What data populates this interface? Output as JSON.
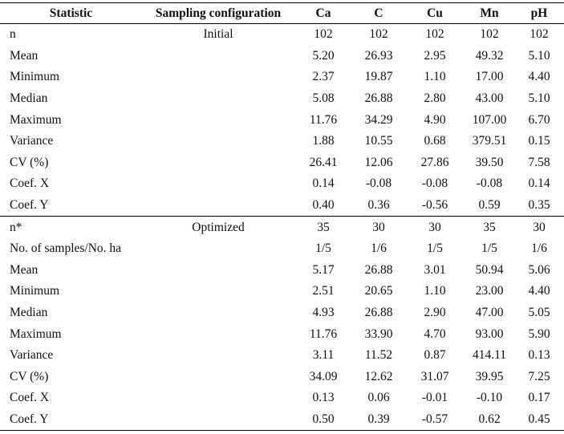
{
  "headers": [
    "Statistic",
    "Sampling configuration",
    "Ca",
    "C",
    "Cu",
    "Mn",
    "pH"
  ],
  "sections": [
    {
      "config": "Initial",
      "rows": [
        {
          "stat": "n",
          "values": [
            "102",
            "102",
            "102",
            "102",
            "102"
          ]
        },
        {
          "stat": "Mean",
          "values": [
            "5.20",
            "26.93",
            "2.95",
            "49.32",
            "5.10"
          ]
        },
        {
          "stat": "Minimum",
          "values": [
            "2.37",
            "19.87",
            "1.10",
            "17.00",
            "4.40"
          ]
        },
        {
          "stat": "Median",
          "values": [
            "5.08",
            "26.88",
            "2.80",
            "43.00",
            "5.10"
          ]
        },
        {
          "stat": "Maximum",
          "values": [
            "11.76",
            "34.29",
            "4.90",
            "107.00",
            "6.70"
          ]
        },
        {
          "stat": "Variance",
          "values": [
            "1.88",
            "10.55",
            "0.68",
            "379.51",
            "0.15"
          ]
        },
        {
          "stat": "CV (%)",
          "values": [
            "26.41",
            "12.06",
            "27.86",
            "39.50",
            "7.58"
          ]
        },
        {
          "stat": "Coef. X",
          "values": [
            "0.14",
            "-0.08",
            "-0.08",
            "-0.08",
            "0.14"
          ]
        },
        {
          "stat": "Coef. Y",
          "values": [
            "0.40",
            "0.36",
            "-0.56",
            "0.59",
            "0.35"
          ]
        }
      ]
    },
    {
      "config": "Optimized",
      "rows": [
        {
          "stat": "n*",
          "values": [
            "35",
            "30",
            "30",
            "35",
            "30"
          ]
        },
        {
          "stat": "No. of samples/No. ha",
          "values": [
            "1/5",
            "1/6",
            "1/5",
            "1/5",
            "1/6"
          ]
        },
        {
          "stat": "Mean",
          "values": [
            "5.17",
            "26.88",
            "3.01",
            "50.94",
            "5.06"
          ]
        },
        {
          "stat": "Minimum",
          "values": [
            "2.51",
            "20.65",
            "1.10",
            "23.00",
            "4.40"
          ]
        },
        {
          "stat": "Median",
          "values": [
            "4.93",
            "26.88",
            "2.90",
            "47.00",
            "5.05"
          ]
        },
        {
          "stat": "Maximum",
          "values": [
            "11.76",
            "33.90",
            "4.70",
            "93.00",
            "5.90"
          ]
        },
        {
          "stat": "Variance",
          "values": [
            "3.11",
            "11.52",
            "0.87",
            "414.11",
            "0.13"
          ]
        },
        {
          "stat": "CV (%)",
          "values": [
            "34.09",
            "12.62",
            "31.07",
            "39.95",
            "7.25"
          ]
        },
        {
          "stat": "Coef. X",
          "values": [
            "0.13",
            "0.06",
            "-0.01",
            "-0.10",
            "0.17"
          ]
        },
        {
          "stat": "Coef. Y",
          "values": [
            "0.50",
            "0.39",
            "-0.57",
            "0.62",
            "0.45"
          ]
        }
      ]
    }
  ]
}
